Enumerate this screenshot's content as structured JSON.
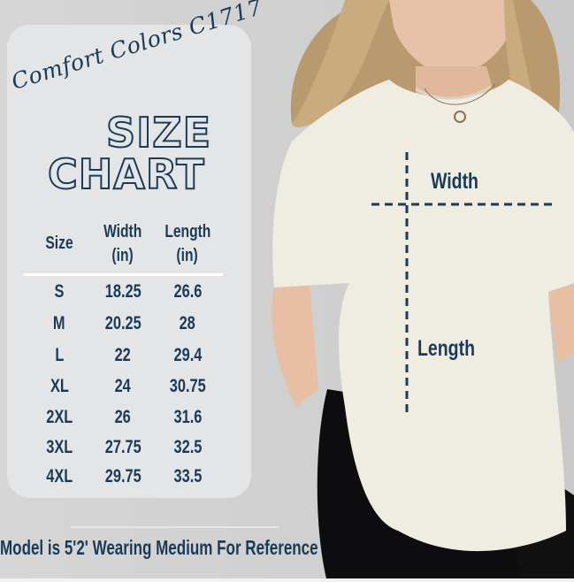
{
  "brand": "Comfort Colors C1717",
  "title": {
    "line1": "SIZE",
    "line2": "CHART"
  },
  "table": {
    "headers": [
      {
        "line1": "Size",
        "line2": ""
      },
      {
        "line1": "Width",
        "line2": "(in)"
      },
      {
        "line1": "Length",
        "line2": "(in)"
      }
    ],
    "rows": [
      [
        "S",
        "18.25",
        "26.6"
      ],
      [
        "M",
        "20.25",
        "28"
      ],
      [
        "L",
        "22",
        "29.4"
      ],
      [
        "XL",
        "24",
        "30.75"
      ],
      [
        "2XL",
        "26",
        "31.6"
      ],
      [
        "3XL",
        "27.75",
        "32.5"
      ],
      [
        "4XL",
        "29.75",
        "33.5"
      ]
    ]
  },
  "measure_labels": {
    "width": "Width",
    "length": "Length"
  },
  "footer": "Model is 5'2' Wearing Medium For Reference",
  "colors": {
    "text": "#1b3a57",
    "card": "#e4e5e6",
    "shirt": "#efece1"
  }
}
